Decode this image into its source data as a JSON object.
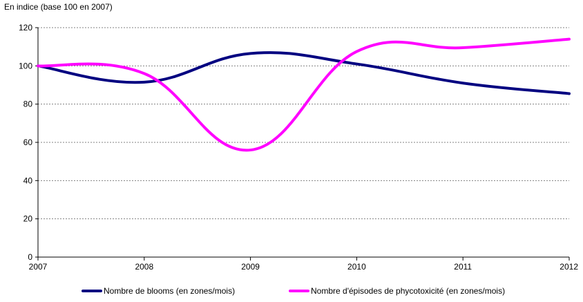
{
  "chart_data": {
    "type": "line",
    "unit_label": "En indice (base 100 en 2007)",
    "x": [
      "2007",
      "2008",
      "2009",
      "2010",
      "2011",
      "2012"
    ],
    "ylim": [
      0,
      120
    ],
    "yticks": [
      "0",
      "20",
      "40",
      "60",
      "80",
      "100",
      "120"
    ],
    "grid": true,
    "legend_position": "bottom",
    "series": [
      {
        "name": "Nombre de blooms (en zones/mois)",
        "color": "#000080",
        "values": [
          100,
          91.5,
          106.5,
          101,
          91,
          85.5
        ]
      },
      {
        "name": "Nombre d'épisodes de phycotoxicité (en zones/mois)",
        "color": "#ff00ff",
        "values": [
          100,
          96,
          56,
          107.5,
          109.5,
          114
        ]
      }
    ]
  }
}
